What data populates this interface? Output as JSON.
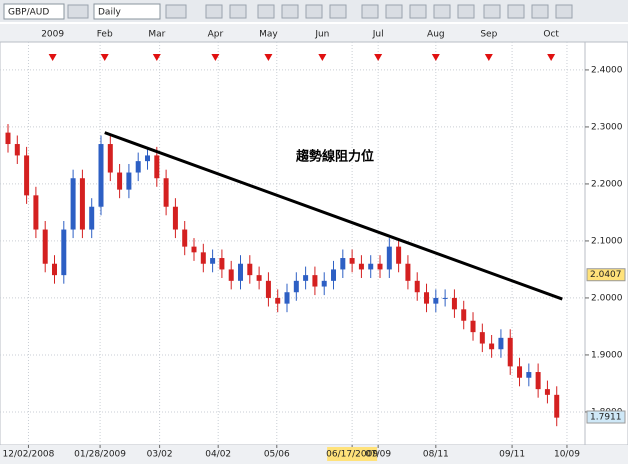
{
  "toolbar": {
    "symbol": "GBP/AUD",
    "interval": "Daily"
  },
  "chart_data": {
    "type": "candlestick",
    "annotation": "趨勢線阻力位",
    "up_color": "#2d5fc4",
    "down_color": "#d42020",
    "open": [
      2.29,
      2.27,
      2.25,
      2.18,
      2.12,
      2.06,
      2.04,
      2.12,
      2.21,
      2.12,
      2.16,
      2.27,
      2.22,
      2.19,
      2.22,
      2.24,
      2.25,
      2.21,
      2.16,
      2.12,
      2.09,
      2.08,
      2.06,
      2.07,
      2.05,
      2.03,
      2.06,
      2.04,
      2.03,
      2.0,
      1.99,
      2.01,
      2.03,
      2.04,
      2.02,
      2.03,
      2.05,
      2.07,
      2.06,
      2.05,
      2.06,
      2.05,
      2.09,
      2.06,
      2.03,
      2.01,
      1.99,
      2.0,
      2.0,
      1.98,
      1.96,
      1.94,
      1.92,
      1.91,
      1.93,
      1.88,
      1.86,
      1.87,
      1.84,
      1.83
    ],
    "high": [
      2.305,
      2.285,
      2.265,
      2.195,
      2.135,
      2.075,
      2.135,
      2.225,
      2.225,
      2.175,
      2.285,
      2.285,
      2.235,
      2.235,
      2.255,
      2.265,
      2.265,
      2.225,
      2.175,
      2.135,
      2.105,
      2.095,
      2.085,
      2.085,
      2.065,
      2.075,
      2.075,
      2.055,
      2.045,
      2.015,
      2.025,
      2.045,
      2.055,
      2.055,
      2.045,
      2.065,
      2.085,
      2.085,
      2.075,
      2.075,
      2.075,
      2.105,
      2.105,
      2.075,
      2.045,
      2.025,
      2.015,
      2.015,
      2.015,
      1.995,
      1.975,
      1.955,
      1.935,
      1.945,
      1.945,
      1.895,
      1.885,
      1.885,
      1.855,
      1.845
    ],
    "low": [
      2.255,
      2.235,
      2.165,
      2.105,
      2.045,
      2.025,
      2.025,
      2.105,
      2.105,
      2.105,
      2.145,
      2.205,
      2.175,
      2.175,
      2.205,
      2.225,
      2.195,
      2.145,
      2.105,
      2.075,
      2.065,
      2.045,
      2.045,
      2.035,
      2.015,
      2.015,
      2.025,
      2.015,
      1.985,
      1.975,
      1.975,
      1.995,
      2.015,
      2.005,
      2.005,
      2.015,
      2.035,
      2.045,
      2.035,
      2.035,
      2.035,
      2.035,
      2.045,
      2.015,
      1.995,
      1.975,
      1.975,
      1.985,
      1.965,
      1.945,
      1.925,
      1.905,
      1.895,
      1.895,
      1.865,
      1.845,
      1.845,
      1.825,
      1.815,
      1.775
    ],
    "close": [
      2.27,
      2.25,
      2.18,
      2.12,
      2.06,
      2.04,
      2.12,
      2.21,
      2.12,
      2.16,
      2.27,
      2.22,
      2.19,
      2.22,
      2.24,
      2.25,
      2.21,
      2.16,
      2.12,
      2.09,
      2.08,
      2.06,
      2.07,
      2.05,
      2.03,
      2.06,
      2.04,
      2.03,
      2.0,
      1.99,
      2.01,
      2.03,
      2.04,
      2.02,
      2.03,
      2.05,
      2.07,
      2.06,
      2.05,
      2.06,
      2.05,
      2.09,
      2.06,
      2.03,
      2.01,
      1.99,
      2.0,
      2.0,
      1.98,
      1.96,
      1.94,
      1.92,
      1.91,
      1.93,
      1.88,
      1.86,
      1.87,
      1.84,
      1.83,
      1.79
    ],
    "xlim": [
      -0.86,
      62.04
    ],
    "ylim": [
      1.742,
      2.449
    ],
    "yticks": [
      {
        "value": 1.8,
        "label": "1.8000"
      },
      {
        "value": 1.9,
        "label": "1.9000"
      },
      {
        "value": 2.0,
        "label": "2.0000"
      },
      {
        "value": 2.1,
        "label": "2.1000"
      },
      {
        "value": 2.2,
        "label": "2.2000"
      },
      {
        "value": 2.3,
        "label": "2.3000"
      },
      {
        "value": 2.4,
        "label": "2.4000"
      }
    ],
    "top_xticks": [
      {
        "value": 4.8,
        "label": "2009"
      },
      {
        "value": 10.4,
        "label": "Feb"
      },
      {
        "value": 16,
        "label": "Mar"
      },
      {
        "value": 22.3,
        "label": "Apr"
      },
      {
        "value": 28,
        "label": "May"
      },
      {
        "value": 33.8,
        "label": "Jun"
      },
      {
        "value": 39.8,
        "label": "Jul"
      },
      {
        "value": 46,
        "label": "Aug"
      },
      {
        "value": 51.7,
        "label": "Sep"
      },
      {
        "value": 58.4,
        "label": "Oct"
      }
    ],
    "xticks": [
      {
        "value": 2.2,
        "label": "12/02/2008"
      },
      {
        "value": 9.9,
        "label": "01/28/2009"
      },
      {
        "value": 16.3,
        "label": "03/02"
      },
      {
        "value": 22.6,
        "label": "04/02"
      },
      {
        "value": 28.9,
        "label": "05/06"
      },
      {
        "value": 37,
        "label": "06/17/2009",
        "highlight": true
      },
      {
        "value": 39.8,
        "label": "07/09"
      },
      {
        "value": 46,
        "label": "08/11"
      },
      {
        "value": 54.2,
        "label": "09/11"
      },
      {
        "value": 60.1,
        "label": "10/09"
      }
    ],
    "trendline": {
      "x": [
        10.4,
        59.6
      ],
      "y": [
        2.29,
        1.998
      ]
    },
    "price_markers": [
      {
        "value": 2.0407,
        "color": "#ffe27a"
      },
      {
        "value": 1.7911,
        "color": "#cfe8f7"
      }
    ],
    "grid": true
  }
}
